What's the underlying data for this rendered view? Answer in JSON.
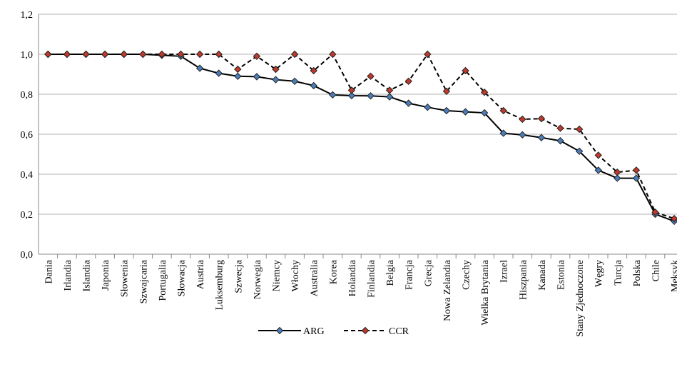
{
  "chart_data": {
    "type": "line",
    "categories": [
      "Dania",
      "Irlandia",
      "Islandia",
      "Japonia",
      "Słowenia",
      "Szwajcaria",
      "Portugalia",
      "Słowacja",
      "Austria",
      "Luksemburg",
      "Szwecja",
      "Norwegia",
      "Niemcy",
      "Włochy",
      "Australia",
      "Korea",
      "Holandia",
      "Finlandia",
      "Belgia",
      "Francja",
      "Grecja",
      "Nowa Zelandia",
      "Czechy",
      "Wielka Brytania",
      "Izrael",
      "Hiszpania",
      "Kanada",
      "Estonia",
      "Stany Zjednoczone",
      "Węgry",
      "Turcja",
      "Polska",
      "Chile",
      "Meksyk"
    ],
    "series": [
      {
        "name": "ARG",
        "color": "#4a7ebb",
        "dashed": false,
        "values": [
          1,
          1,
          1,
          1,
          1,
          1,
          0.995,
          0.99,
          0.93,
          0.905,
          0.89,
          0.888,
          0.873,
          0.865,
          0.843,
          0.797,
          0.793,
          0.792,
          0.787,
          0.755,
          0.735,
          0.718,
          0.712,
          0.707,
          0.605,
          0.597,
          0.583,
          0.567,
          0.515,
          0.42,
          0.38,
          0.38,
          0.2,
          0.165
        ]
      },
      {
        "name": "CCR",
        "color": "#c0392b",
        "dashed": true,
        "values": [
          1,
          1,
          1,
          1,
          1,
          1,
          1,
          1,
          1,
          1,
          0.925,
          0.99,
          0.925,
          1,
          0.918,
          1,
          0.82,
          0.89,
          0.82,
          0.865,
          1,
          0.815,
          0.918,
          0.81,
          0.718,
          0.675,
          0.678,
          0.63,
          0.625,
          0.495,
          0.41,
          0.42,
          0.21,
          0.178
        ]
      }
    ],
    "ylim": [
      0,
      1.2
    ],
    "yticks": [
      {
        "value": 0,
        "label": "0,0"
      },
      {
        "value": 0.2,
        "label": "0,2"
      },
      {
        "value": 0.4,
        "label": "0,4"
      },
      {
        "value": 0.6,
        "label": "0,6"
      },
      {
        "value": 0.8,
        "label": "0,8"
      },
      {
        "value": 1.0,
        "label": "1,0"
      },
      {
        "value": 1.2,
        "label": "1,2"
      }
    ],
    "grid": true,
    "legend": "bottom"
  }
}
